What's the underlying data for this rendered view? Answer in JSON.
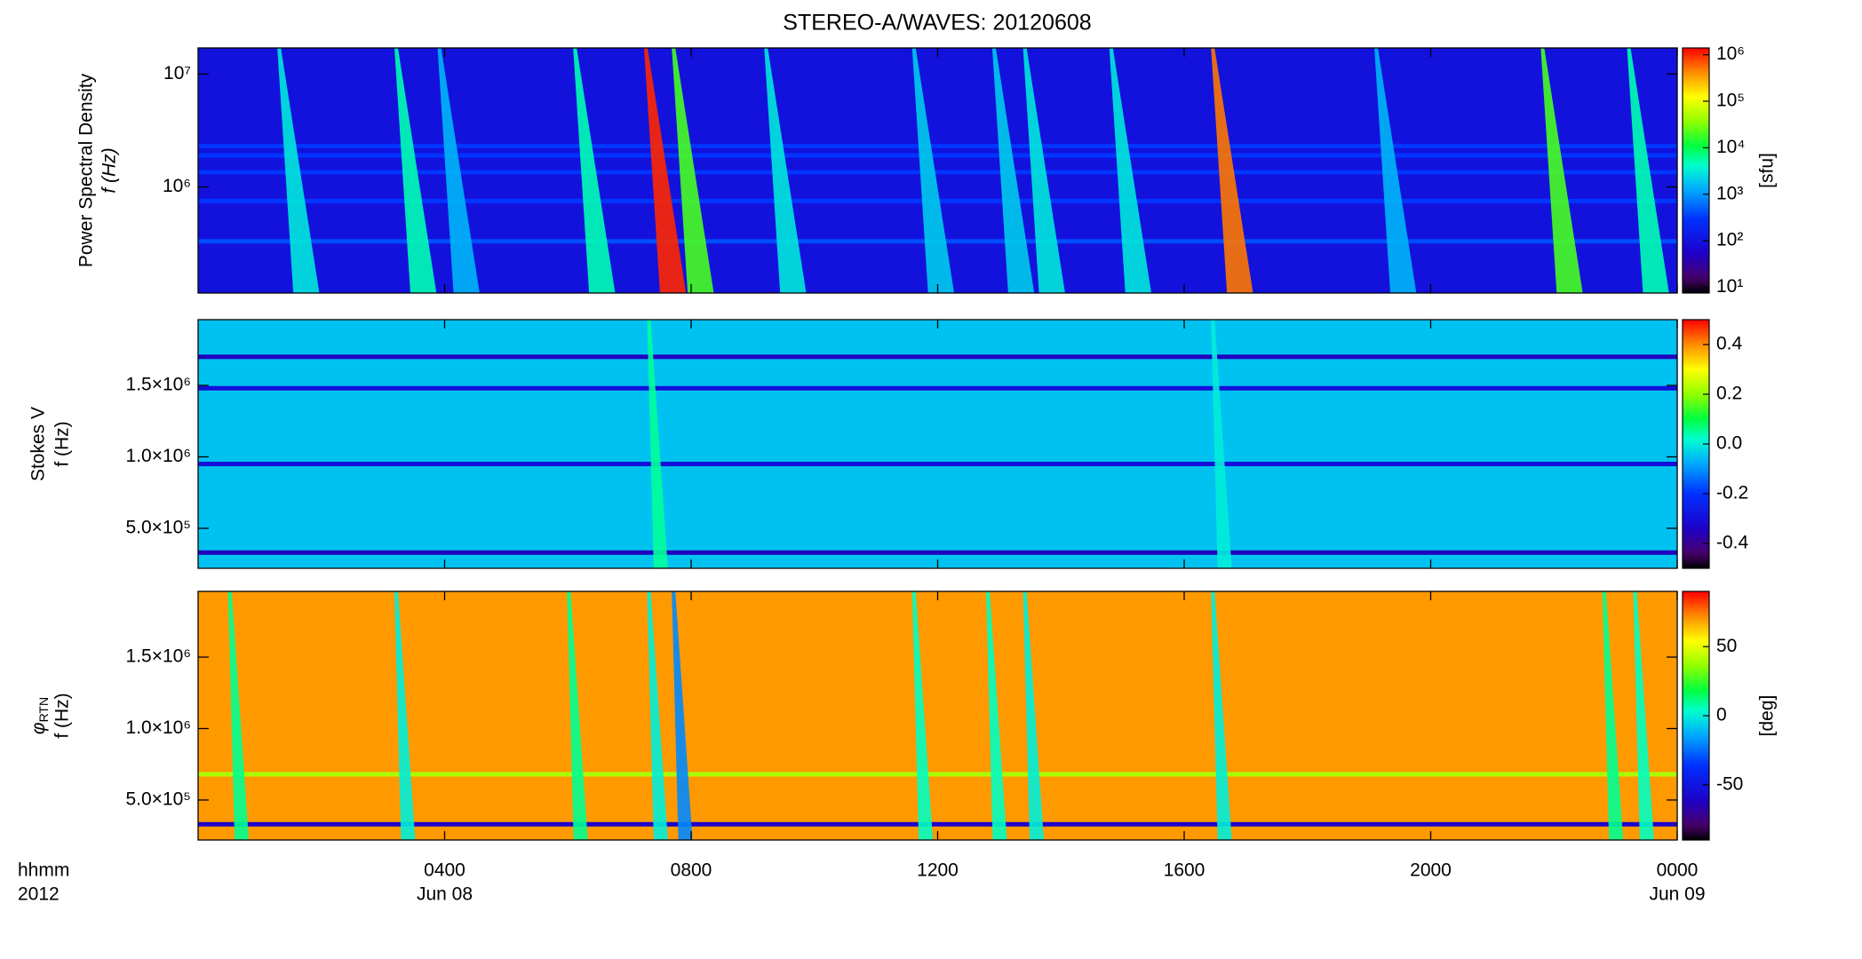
{
  "title": "STEREO-A/WAVES: 20120608",
  "x_axis": {
    "xlim": [
      0,
      24
    ],
    "xticks": [
      {
        "value": 4,
        "label": "0400"
      },
      {
        "value": 8,
        "label": "0800"
      },
      {
        "value": 12,
        "label": "1200"
      },
      {
        "value": 16,
        "label": "1600"
      },
      {
        "value": 20,
        "label": "2000"
      },
      {
        "value": 24,
        "label": "0000"
      }
    ],
    "date_labels": [
      {
        "value": 4,
        "label": "Jun 08"
      },
      {
        "value": 24,
        "label": "Jun 09"
      }
    ],
    "unit_labels": [
      "hhmm",
      "2012"
    ]
  },
  "chart_data": [
    {
      "type": "spectrogram",
      "ylabel": [
        "Power Spectral Density",
        "f (Hz)"
      ],
      "log_y": true,
      "ylim": [
        115000,
        17000000
      ],
      "yticks": [
        {
          "value": 1000000,
          "label": "10⁶"
        },
        {
          "value": 10000000,
          "label": "10⁷"
        }
      ],
      "colorbar": {
        "log": true,
        "clim": [
          7.5,
          1400000
        ],
        "label": "[sfu]",
        "ticks": [
          {
            "value": 10,
            "label": "10¹"
          },
          {
            "value": 100,
            "label": "10²"
          },
          {
            "value": 1000,
            "label": "10³"
          },
          {
            "value": 10000,
            "label": "10⁴"
          },
          {
            "value": 100000,
            "label": "10⁵"
          },
          {
            "value": 1000000,
            "label": "10⁶"
          }
        ]
      },
      "background": 100,
      "bands": {
        "frequencies": [
          2300000,
          1900000,
          1350000,
          750000,
          330000
        ],
        "values": [
          300,
          300,
          300,
          300,
          400
        ]
      },
      "bursts": {
        "times": [
          1.3,
          3.2,
          3.9,
          6.1,
          7.25,
          7.7,
          9.2,
          11.6,
          12.9,
          13.4,
          14.8,
          16.45,
          19.1,
          21.8,
          23.2
        ],
        "values": [
          3000,
          5000,
          1500,
          5000,
          1000000,
          20000,
          3000,
          2000,
          2000,
          3000,
          3000,
          500000,
          1500,
          20000,
          5000
        ]
      }
    },
    {
      "type": "spectrogram",
      "ylabel": [
        "Stokes V",
        "f (Hz)"
      ],
      "log_y": false,
      "ylim": [
        220000,
        1960000
      ],
      "yticks": [
        {
          "value": 500000,
          "label": "5.0×10⁵"
        },
        {
          "value": 1000000,
          "label": "1.0×10⁶"
        },
        {
          "value": 1500000,
          "label": "1.5×10⁶"
        }
      ],
      "colorbar": {
        "log": false,
        "clim": [
          -0.5,
          0.5
        ],
        "label": "",
        "ticks": [
          0.4,
          0.2,
          {
            "value": 0,
            "label": "0.0"
          },
          -0.2,
          -0.4
        ]
      },
      "background": -0.05,
      "bands": {
        "frequencies": [
          1700000,
          1480000,
          950000,
          330000
        ],
        "values": [
          -0.35,
          -0.3,
          -0.3,
          -0.35
        ]
      },
      "bursts": {
        "times": [
          7.3,
          16.45
        ],
        "values": [
          0.05,
          0
        ]
      }
    },
    {
      "type": "spectrogram",
      "ylabel_symbol": "φ",
      "ylabel_subscript": "RTN",
      "ylabel": [
        "f (Hz)"
      ],
      "log_y": false,
      "ylim": [
        220000,
        1960000
      ],
      "yticks": [
        {
          "value": 500000,
          "label": "5.0×10⁵"
        },
        {
          "value": 1000000,
          "label": "1.0×10⁶"
        },
        {
          "value": 1500000,
          "label": "1.5×10⁶"
        }
      ],
      "colorbar": {
        "log": false,
        "clim": [
          -90,
          90
        ],
        "label": "[deg]",
        "ticks": [
          50,
          0,
          -50
        ]
      },
      "background": 70,
      "bands": {
        "frequencies": [
          680000,
          330000
        ],
        "values": [
          40,
          -60
        ]
      },
      "bursts": {
        "times": [
          0.5,
          3.2,
          6.0,
          7.3,
          7.7,
          11.6,
          12.8,
          13.4,
          16.45,
          22.8,
          23.3
        ],
        "values": [
          10,
          0,
          10,
          0,
          -20,
          5,
          5,
          0,
          0,
          10,
          5
        ]
      }
    }
  ]
}
